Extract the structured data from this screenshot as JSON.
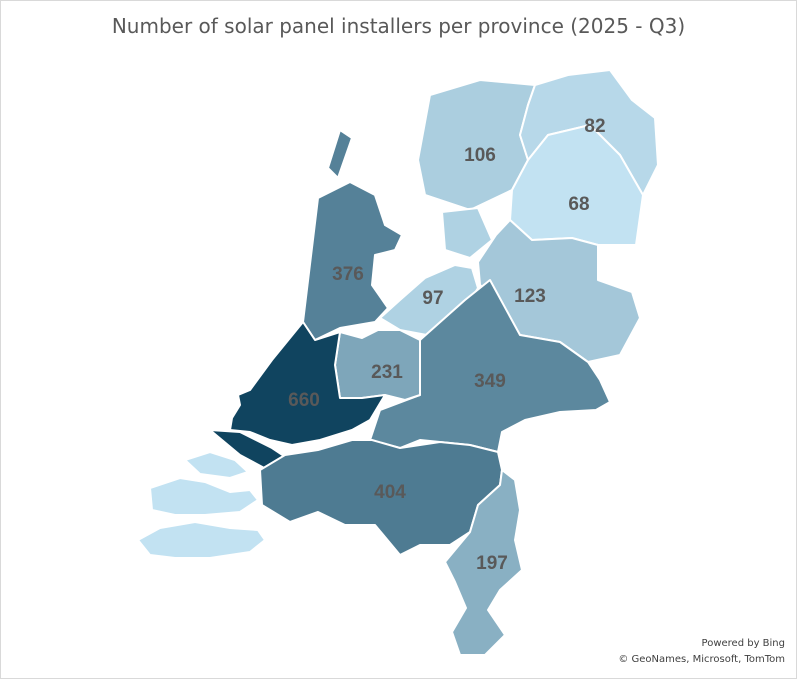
{
  "title": "Number of solar panel installers per province (2025 - Q3)",
  "colors": {
    "low": "#c2e2f2",
    "high": "#10445f",
    "label": "#595959",
    "water": "#ffffff"
  },
  "provinces": [
    {
      "id": "groningen",
      "value": 82
    },
    {
      "id": "friesland",
      "value": 106
    },
    {
      "id": "drenthe",
      "value": 68
    },
    {
      "id": "noord-holland",
      "value": 376
    },
    {
      "id": "flevoland",
      "value": 97
    },
    {
      "id": "overijssel",
      "value": 123
    },
    {
      "id": "gelderland",
      "value": 349
    },
    {
      "id": "utrecht",
      "value": 231
    },
    {
      "id": "zuid-holland",
      "value": 660
    },
    {
      "id": "noord-brabant",
      "value": 404
    },
    {
      "id": "limburg",
      "value": 197
    },
    {
      "id": "zeeland",
      "value": null
    }
  ],
  "credits": {
    "powered_by": "Powered by Bing",
    "sources": "© GeoNames, Microsoft, TomTom"
  }
}
